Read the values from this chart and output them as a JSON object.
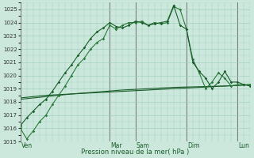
{
  "bg_color": "#cce8dc",
  "grid_color": "#99ccbb",
  "line_color_dark": "#1a5c2a",
  "line_color_mid": "#2a7a3a",
  "xlabel": "Pression niveau de la mer( hPa )",
  "ylim": [
    1015,
    1025.5
  ],
  "yticks": [
    1015,
    1016,
    1017,
    1018,
    1019,
    1020,
    1021,
    1022,
    1023,
    1024,
    1025
  ],
  "day_labels": [
    "Ven",
    "Mar",
    "Sam",
    "Dim",
    "Lun"
  ],
  "day_positions": [
    0,
    14,
    18,
    26,
    34
  ],
  "xlim": [
    0,
    36
  ],
  "series1_x": [
    0,
    1,
    2,
    3,
    4,
    5,
    6,
    7,
    8,
    9,
    10,
    11,
    12,
    13,
    14,
    15,
    16,
    17,
    18,
    19,
    20,
    21,
    22,
    23,
    24,
    25,
    26,
    27,
    28,
    29,
    30,
    31,
    32,
    33,
    34,
    35,
    36
  ],
  "series1_y": [
    1016.0,
    1015.2,
    1015.8,
    1016.5,
    1017.0,
    1017.8,
    1018.5,
    1019.2,
    1020.0,
    1020.8,
    1021.3,
    1022.0,
    1022.5,
    1022.8,
    1023.8,
    1023.5,
    1023.8,
    1024.0,
    1024.0,
    1024.1,
    1023.8,
    1024.0,
    1023.9,
    1024.0,
    1025.2,
    1025.0,
    1023.5,
    1021.2,
    1020.2,
    1019.0,
    1019.5,
    1020.2,
    1019.8,
    1019.2,
    1019.3,
    1019.3,
    1019.3
  ],
  "series2_x": [
    0,
    1,
    2,
    3,
    4,
    5,
    6,
    7,
    8,
    9,
    10,
    11,
    12,
    13,
    14,
    15,
    16,
    17,
    18,
    19,
    20,
    21,
    22,
    23,
    24,
    25,
    26,
    27,
    28,
    29,
    30,
    31,
    32,
    33,
    34,
    35,
    36
  ],
  "series2_y": [
    1016.2,
    1016.8,
    1017.3,
    1017.8,
    1018.2,
    1018.8,
    1019.5,
    1020.2,
    1020.8,
    1021.5,
    1022.1,
    1022.8,
    1023.3,
    1023.6,
    1024.0,
    1023.7,
    1023.6,
    1023.8,
    1024.1,
    1024.0,
    1023.8,
    1023.9,
    1024.0,
    1024.1,
    1025.3,
    1023.8,
    1023.5,
    1021.0,
    1020.3,
    1019.8,
    1019.0,
    1019.5,
    1020.3,
    1019.5,
    1019.5,
    1019.3,
    1019.2
  ],
  "series3_x": [
    0,
    2,
    4,
    6,
    8,
    10,
    12,
    14,
    16,
    18,
    20,
    22,
    24,
    26,
    28,
    30,
    32,
    34,
    36
  ],
  "series3_y": [
    1018.3,
    1018.4,
    1018.5,
    1018.55,
    1018.6,
    1018.65,
    1018.7,
    1018.75,
    1018.8,
    1018.85,
    1018.9,
    1018.95,
    1019.0,
    1019.05,
    1019.1,
    1019.15,
    1019.2,
    1019.25,
    1019.3
  ],
  "series4_x": [
    0,
    4,
    8,
    12,
    16,
    20,
    24,
    28,
    32,
    36
  ],
  "series4_y": [
    1018.2,
    1018.4,
    1018.6,
    1018.75,
    1018.9,
    1019.0,
    1019.1,
    1019.15,
    1019.2,
    1019.3
  ]
}
